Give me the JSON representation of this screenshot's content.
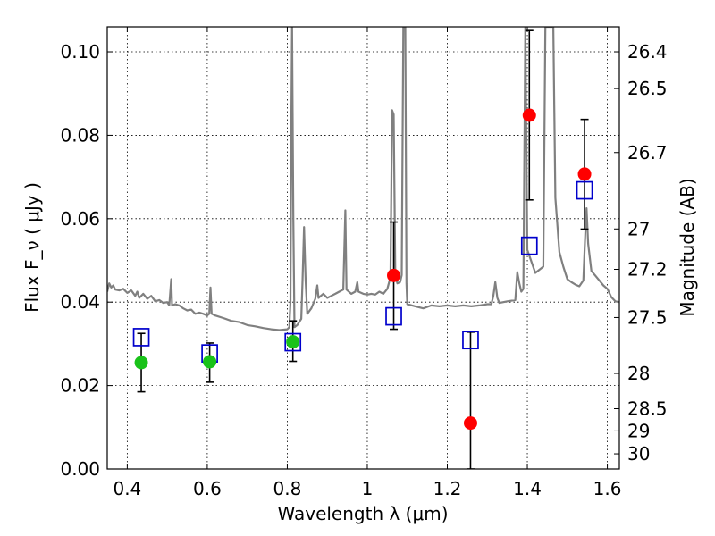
{
  "chart_data": {
    "type": "scatter",
    "xlabel": "Wavelength  λ (μm)",
    "ylabel": "Flux  F_ν  ( μJy )",
    "ylabel2": "Magnitude (AB)",
    "xlim": [
      0.35,
      1.63
    ],
    "ylim": [
      0.0,
      0.106
    ],
    "grid": true,
    "x_ticks": [
      0.4,
      0.6,
      0.8,
      1.0,
      1.2,
      1.4,
      1.6
    ],
    "x_tick_labels": [
      "0.4",
      "0.6",
      "0.8",
      "1",
      "1.2",
      "1.4",
      "1.6"
    ],
    "y_ticks": [
      0.0,
      0.02,
      0.04,
      0.06,
      0.08,
      0.1
    ],
    "y_tick_labels": [
      "0.00",
      "0.02",
      "0.04",
      "0.06",
      "0.08",
      "0.10"
    ],
    "mag_ticks": [
      "26.4",
      "26.5",
      "26.7",
      "27",
      "27.2",
      "27.5",
      "28",
      "28.5",
      "29",
      "30"
    ],
    "colors": {
      "sed": "#808080",
      "green": "#19c219",
      "red": "#ff0000",
      "model": "#0000cc",
      "errorbar": "#000000"
    },
    "series": [
      {
        "kind": "observed-flux",
        "color": "green",
        "points": [
          {
            "x": 0.435,
            "y": 0.0255,
            "ylo": 0.0185,
            "yhi": 0.0325
          },
          {
            "x": 0.606,
            "y": 0.0257,
            "ylo": 0.0208,
            "yhi": 0.0302
          },
          {
            "x": 0.814,
            "y": 0.0305,
            "ylo": 0.0258,
            "yhi": 0.0355
          }
        ]
      },
      {
        "kind": "observed-flux",
        "color": "red",
        "points": [
          {
            "x": 1.066,
            "y": 0.0464,
            "ylo": 0.0335,
            "yhi": 0.0592
          },
          {
            "x": 1.258,
            "y": 0.011,
            "ylo": 0.0,
            "yhi": 0.0328
          },
          {
            "x": 1.405,
            "y": 0.0848,
            "ylo": 0.0645,
            "yhi": 0.1051
          },
          {
            "x": 1.543,
            "y": 0.0707,
            "ylo": 0.0575,
            "yhi": 0.0838
          }
        ]
      },
      {
        "kind": "model-flux",
        "color": "model",
        "points": [
          {
            "x": 0.435,
            "y": 0.0316
          },
          {
            "x": 0.606,
            "y": 0.0277
          },
          {
            "x": 0.814,
            "y": 0.0304
          },
          {
            "x": 1.066,
            "y": 0.0366
          },
          {
            "x": 1.258,
            "y": 0.0309
          },
          {
            "x": 1.405,
            "y": 0.0535
          },
          {
            "x": 1.543,
            "y": 0.0668
          }
        ]
      }
    ],
    "sed_curve": [
      [
        0.35,
        0.0425
      ],
      [
        0.355,
        0.0445
      ],
      [
        0.36,
        0.0435
      ],
      [
        0.365,
        0.044
      ],
      [
        0.37,
        0.043
      ],
      [
        0.38,
        0.0428
      ],
      [
        0.39,
        0.0432
      ],
      [
        0.4,
        0.0422
      ],
      [
        0.41,
        0.0428
      ],
      [
        0.42,
        0.0415
      ],
      [
        0.425,
        0.0425
      ],
      [
        0.43,
        0.041
      ],
      [
        0.44,
        0.042
      ],
      [
        0.45,
        0.0408
      ],
      [
        0.46,
        0.0415
      ],
      [
        0.47,
        0.0402
      ],
      [
        0.48,
        0.0405
      ],
      [
        0.49,
        0.0398
      ],
      [
        0.5,
        0.04
      ],
      [
        0.505,
        0.0392
      ],
      [
        0.51,
        0.0455
      ],
      [
        0.512,
        0.0392
      ],
      [
        0.52,
        0.0395
      ],
      [
        0.53,
        0.0392
      ],
      [
        0.54,
        0.0385
      ],
      [
        0.55,
        0.038
      ],
      [
        0.56,
        0.0382
      ],
      [
        0.57,
        0.0372
      ],
      [
        0.58,
        0.0375
      ],
      [
        0.59,
        0.0372
      ],
      [
        0.6,
        0.0368
      ],
      [
        0.605,
        0.0372
      ],
      [
        0.608,
        0.0435
      ],
      [
        0.611,
        0.0372
      ],
      [
        0.62,
        0.0368
      ],
      [
        0.64,
        0.0362
      ],
      [
        0.66,
        0.0355
      ],
      [
        0.68,
        0.0352
      ],
      [
        0.7,
        0.0345
      ],
      [
        0.72,
        0.0342
      ],
      [
        0.74,
        0.0338
      ],
      [
        0.76,
        0.0335
      ],
      [
        0.78,
        0.0333
      ],
      [
        0.8,
        0.0335
      ],
      [
        0.805,
        0.034
      ],
      [
        0.808,
        0.04
      ],
      [
        0.81,
        0.08
      ],
      [
        0.812,
        0.106
      ],
      [
        0.815,
        0.06
      ],
      [
        0.818,
        0.034
      ],
      [
        0.825,
        0.0345
      ],
      [
        0.835,
        0.036
      ],
      [
        0.838,
        0.045
      ],
      [
        0.842,
        0.058
      ],
      [
        0.846,
        0.045
      ],
      [
        0.85,
        0.0372
      ],
      [
        0.86,
        0.0385
      ],
      [
        0.87,
        0.0408
      ],
      [
        0.875,
        0.044
      ],
      [
        0.878,
        0.041
      ],
      [
        0.89,
        0.042
      ],
      [
        0.9,
        0.041
      ],
      [
        0.91,
        0.0415
      ],
      [
        0.92,
        0.042
      ],
      [
        0.93,
        0.0425
      ],
      [
        0.94,
        0.043
      ],
      [
        0.945,
        0.062
      ],
      [
        0.948,
        0.043
      ],
      [
        0.96,
        0.042
      ],
      [
        0.97,
        0.0425
      ],
      [
        0.975,
        0.0448
      ],
      [
        0.978,
        0.0425
      ],
      [
        0.99,
        0.042
      ],
      [
        1.0,
        0.0418
      ],
      [
        1.01,
        0.042
      ],
      [
        1.02,
        0.0418
      ],
      [
        1.03,
        0.0425
      ],
      [
        1.04,
        0.042
      ],
      [
        1.05,
        0.0432
      ],
      [
        1.058,
        0.046
      ],
      [
        1.062,
        0.086
      ],
      [
        1.066,
        0.085
      ],
      [
        1.07,
        0.0465
      ],
      [
        1.075,
        0.0445
      ],
      [
        1.082,
        0.0448
      ],
      [
        1.086,
        0.0465
      ],
      [
        1.09,
        0.106
      ],
      [
        1.095,
        0.106
      ],
      [
        1.098,
        0.0445
      ],
      [
        1.1,
        0.0395
      ],
      [
        1.12,
        0.039
      ],
      [
        1.14,
        0.0385
      ],
      [
        1.16,
        0.0392
      ],
      [
        1.18,
        0.039
      ],
      [
        1.2,
        0.0392
      ],
      [
        1.22,
        0.039
      ],
      [
        1.24,
        0.0392
      ],
      [
        1.26,
        0.039
      ],
      [
        1.28,
        0.0392
      ],
      [
        1.3,
        0.0395
      ],
      [
        1.31,
        0.0395
      ],
      [
        1.315,
        0.0415
      ],
      [
        1.32,
        0.0448
      ],
      [
        1.325,
        0.041
      ],
      [
        1.33,
        0.0398
      ],
      [
        1.35,
        0.0402
      ],
      [
        1.37,
        0.0405
      ],
      [
        1.375,
        0.0472
      ],
      [
        1.38,
        0.0445
      ],
      [
        1.385,
        0.0425
      ],
      [
        1.39,
        0.0432
      ],
      [
        1.395,
        0.106
      ],
      [
        1.4,
        0.0525
      ],
      [
        1.42,
        0.047
      ],
      [
        1.44,
        0.0485
      ],
      [
        1.445,
        0.106
      ],
      [
        1.452,
        0.106
      ],
      [
        1.46,
        0.106
      ],
      [
        1.465,
        0.106
      ],
      [
        1.47,
        0.065
      ],
      [
        1.48,
        0.052
      ],
      [
        1.49,
        0.0485
      ],
      [
        1.5,
        0.0455
      ],
      [
        1.51,
        0.0448
      ],
      [
        1.52,
        0.0442
      ],
      [
        1.53,
        0.0438
      ],
      [
        1.54,
        0.0452
      ],
      [
        1.545,
        0.0565
      ],
      [
        1.548,
        0.0625
      ],
      [
        1.552,
        0.054
      ],
      [
        1.56,
        0.0475
      ],
      [
        1.58,
        0.0452
      ],
      [
        1.59,
        0.044
      ],
      [
        1.6,
        0.0432
      ],
      [
        1.61,
        0.0412
      ],
      [
        1.62,
        0.0402
      ],
      [
        1.63,
        0.04
      ]
    ]
  }
}
